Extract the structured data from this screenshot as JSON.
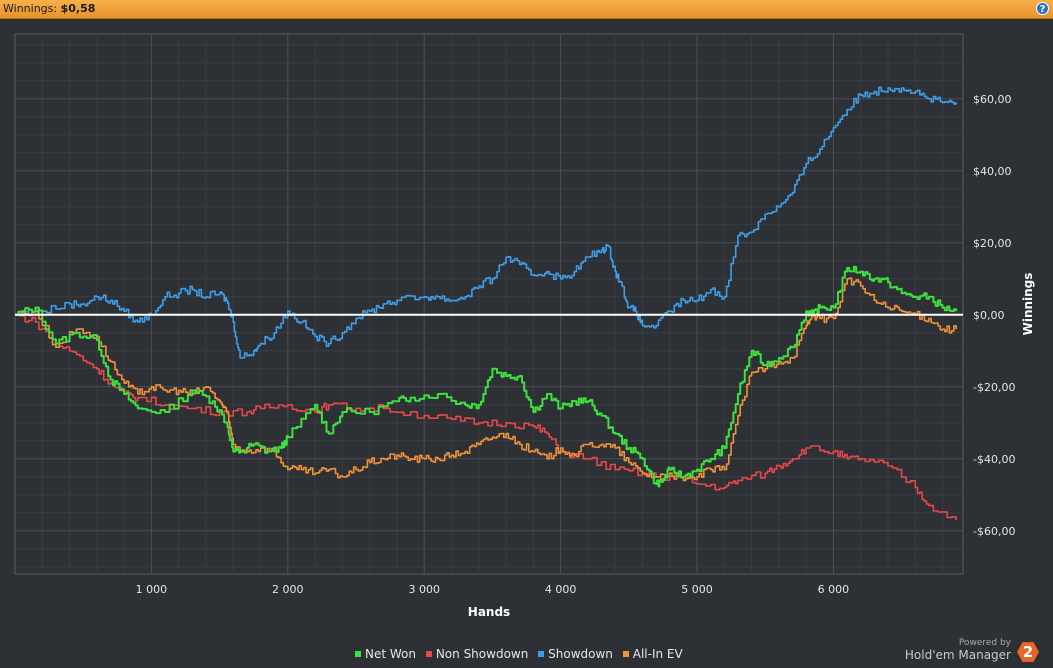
{
  "header": {
    "label": "Winnings:",
    "value": "$0,58",
    "help_icon": "?"
  },
  "chart_data": {
    "type": "line",
    "xlabel": "Hands",
    "ylabel": "Winnings",
    "xlim": [
      0,
      6950
    ],
    "ylim": [
      -72,
      78
    ],
    "x_ticks": [
      1000,
      2000,
      3000,
      4000,
      5000,
      6000
    ],
    "x_tick_labels": [
      "1 000",
      "2 000",
      "3 000",
      "4 000",
      "5 000",
      "6 000"
    ],
    "y_ticks": [
      60,
      40,
      20,
      0,
      -20,
      -40,
      -60
    ],
    "y_tick_labels": [
      "$60,00",
      "$40,00",
      "$20,00",
      "$0,00",
      "-$20,00",
      "-$40,00",
      "-$60,00"
    ],
    "grid": true,
    "legend_position": "bottom",
    "series": [
      {
        "name": "Net Won",
        "color": "#3ee03e",
        "x": [
          0,
          150,
          300,
          450,
          600,
          700,
          800,
          900,
          1100,
          1300,
          1450,
          1550,
          1600,
          1650,
          1750,
          1850,
          1950,
          2000,
          2200,
          2300,
          2400,
          2600,
          2800,
          2900,
          3100,
          3300,
          3400,
          3500,
          3600,
          3700,
          3800,
          3900,
          4000,
          4100,
          4200,
          4300,
          4400,
          4500,
          4600,
          4700,
          4750,
          4800,
          4900,
          5000,
          5100,
          5200,
          5300,
          5400,
          5500,
          5600,
          5700,
          5800,
          5850,
          5900,
          6000,
          6100,
          6200,
          6300,
          6400,
          6500,
          6600,
          6700,
          6800,
          6900
        ],
        "y": [
          0,
          2,
          -8,
          -5,
          -7,
          -18,
          -22,
          -26,
          -27,
          -21,
          -24,
          -30,
          -38,
          -38,
          -36,
          -38,
          -37,
          -34,
          -25,
          -33,
          -27,
          -27,
          -24,
          -23,
          -22,
          -25,
          -25,
          -15,
          -17,
          -17,
          -27,
          -22,
          -26,
          -24,
          -24,
          -28,
          -33,
          -37,
          -40,
          -47,
          -46,
          -43,
          -45,
          -43,
          -40,
          -37,
          -22,
          -10,
          -14,
          -12,
          -9,
          1,
          0,
          2,
          2,
          13,
          12,
          10,
          9,
          6,
          5,
          5,
          2,
          1
        ]
      },
      {
        "name": "Non Showdown",
        "color": "#e8484a",
        "x": [
          0,
          150,
          300,
          450,
          600,
          700,
          800,
          900,
          1100,
          1300,
          1500,
          1700,
          1800,
          2000,
          2200,
          2300,
          2500,
          2700,
          3000,
          3200,
          3400,
          3600,
          3800,
          3900,
          4000,
          4200,
          4400,
          4600,
          4700,
          4900,
          5000,
          5200,
          5300,
          5500,
          5600,
          5700,
          5800,
          6000,
          6100,
          6200,
          6400,
          6600,
          6700,
          6900
        ],
        "y": [
          0,
          -2,
          -8,
          -11,
          -15,
          -19,
          -22,
          -23,
          -25,
          -26,
          -27,
          -27,
          -26,
          -25,
          -27,
          -25,
          -26,
          -26,
          -28,
          -29,
          -30,
          -30,
          -31,
          -33,
          -38,
          -40,
          -43,
          -44,
          -45,
          -45,
          -47,
          -48,
          -46,
          -44,
          -42,
          -40,
          -37,
          -38,
          -40,
          -40,
          -42,
          -48,
          -53,
          -57
        ]
      },
      {
        "name": "Showdown",
        "color": "#3f9ee8",
        "x": [
          0,
          200,
          400,
          500,
          600,
          700,
          800,
          900,
          1000,
          1100,
          1200,
          1300,
          1400,
          1500,
          1550,
          1600,
          1650,
          1750,
          1800,
          1900,
          2000,
          2100,
          2200,
          2300,
          2400,
          2500,
          2600,
          2700,
          2800,
          3000,
          3100,
          3200,
          3300,
          3400,
          3500,
          3600,
          3700,
          3800,
          3900,
          4000,
          4100,
          4200,
          4300,
          4350,
          4400,
          4450,
          4500,
          4550,
          4600,
          4700,
          4800,
          4900,
          5000,
          5100,
          5200,
          5300,
          5400,
          5500,
          5600,
          5700,
          5800,
          5900,
          6000,
          6100,
          6200,
          6300,
          6400,
          6500,
          6600,
          6700,
          6800,
          6900
        ],
        "y": [
          0,
          1,
          3,
          3,
          5,
          4,
          1,
          -2,
          0,
          5,
          6,
          7,
          5,
          6,
          4,
          -2,
          -12,
          -10,
          -8,
          -5,
          1,
          -2,
          -6,
          -8,
          -5,
          -1,
          1,
          3,
          4,
          5,
          5,
          4,
          5,
          8,
          10,
          16,
          14,
          11,
          12,
          10,
          12,
          16,
          18,
          19,
          12,
          8,
          2,
          1,
          -3,
          -3,
          1,
          4,
          4,
          7,
          5,
          22,
          23,
          28,
          30,
          34,
          42,
          46,
          52,
          57,
          61,
          62,
          63,
          63,
          62,
          60,
          59,
          59
        ]
      },
      {
        "name": "All-In EV",
        "color": "#f0923a",
        "x": [
          0,
          150,
          300,
          450,
          600,
          700,
          800,
          900,
          1000,
          1100,
          1200,
          1300,
          1400,
          1500,
          1550,
          1600,
          1700,
          1800,
          1900,
          2000,
          2100,
          2200,
          2300,
          2400,
          2500,
          2600,
          2700,
          2800,
          2900,
          3000,
          3100,
          3200,
          3300,
          3400,
          3500,
          3600,
          3700,
          3800,
          3900,
          4000,
          4100,
          4200,
          4300,
          4400,
          4500,
          4600,
          4700,
          4800,
          4900,
          5000,
          5100,
          5200,
          5300,
          5400,
          5500,
          5600,
          5700,
          5800,
          5850,
          5900,
          6000,
          6100,
          6200,
          6300,
          6400,
          6500,
          6600,
          6700,
          6800,
          6900
        ],
        "y": [
          0,
          1,
          -9,
          -4,
          -6,
          -13,
          -19,
          -22,
          -20,
          -21,
          -21,
          -22,
          -20,
          -24,
          -27,
          -36,
          -38,
          -37,
          -38,
          -43,
          -43,
          -44,
          -43,
          -45,
          -43,
          -41,
          -40,
          -39,
          -40,
          -40,
          -40,
          -39,
          -38,
          -36,
          -34,
          -33,
          -36,
          -38,
          -40,
          -37,
          -39,
          -36,
          -36,
          -37,
          -41,
          -44,
          -45,
          -44,
          -46,
          -45,
          -43,
          -43,
          -28,
          -16,
          -15,
          -13,
          -12,
          -3,
          0,
          -1,
          -1,
          10,
          8,
          4,
          2,
          1,
          0,
          -1,
          -4,
          -4
        ]
      }
    ],
    "baseline": 0
  },
  "legend": [
    {
      "label": "Net Won",
      "color": "#3ee03e"
    },
    {
      "label": "Non Showdown",
      "color": "#e8484a"
    },
    {
      "label": "Showdown",
      "color": "#3f9ee8"
    },
    {
      "label": "All-In EV",
      "color": "#f0923a"
    }
  ],
  "branding": {
    "powered_by": "Powered by",
    "product": "Hold'em Manager",
    "logo_text": "2"
  }
}
